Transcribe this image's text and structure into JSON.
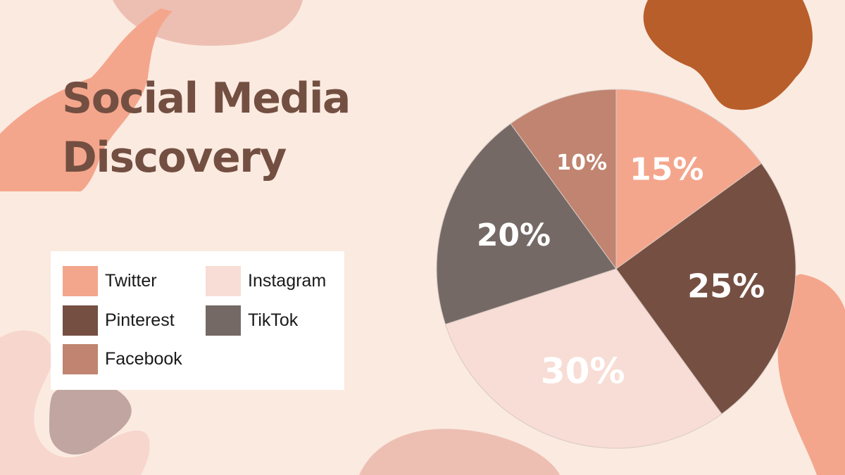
{
  "chart_data": {
    "type": "pie",
    "title": "Social Media Discovery",
    "title_lines": [
      "Social Media",
      "Discovery"
    ],
    "unit": "%",
    "legend_position": "left",
    "slices": [
      {
        "name": "Twitter",
        "value": 15,
        "label": "15%",
        "color": "#F4A68C"
      },
      {
        "name": "Pinterest",
        "value": 25,
        "label": "25%",
        "color": "#754F42"
      },
      {
        "name": "Instagram",
        "value": 30,
        "label": "30%",
        "color": "#F7DDD5"
      },
      {
        "name": "TikTok",
        "value": 20,
        "label": "20%",
        "color": "#756966"
      },
      {
        "name": "Facebook",
        "value": 10,
        "label": "10%",
        "color": "#C08470"
      }
    ]
  },
  "colors": {
    "background": "#FBEAE0",
    "title": "#734F42",
    "accent_blob": "#B85E2A"
  }
}
